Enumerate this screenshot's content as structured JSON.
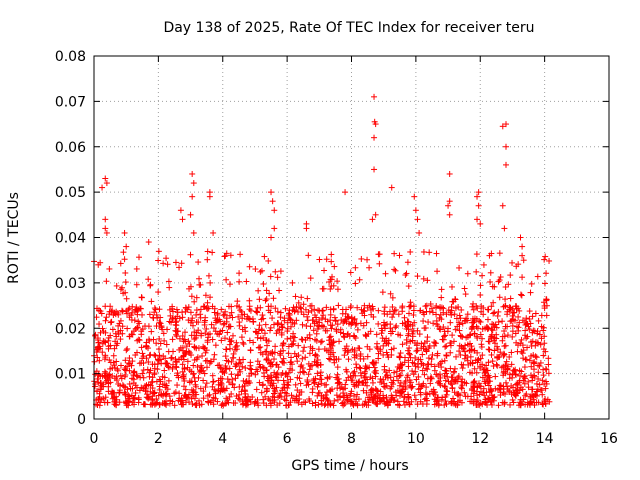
{
  "chart_data": {
    "type": "scatter",
    "title": "Day 138 of 2025, Rate Of TEC Index for receiver teru",
    "xlabel": "GPS time / hours",
    "ylabel": "ROTI / TECUs",
    "xlim": [
      0,
      16
    ],
    "ylim": [
      0,
      0.08
    ],
    "x_ticks": [
      "0",
      "2",
      "4",
      "6",
      "8",
      "10",
      "12",
      "14",
      "16"
    ],
    "y_ticks": [
      "0",
      "0.01",
      "0.02",
      "0.03",
      "0.04",
      "0.05",
      "0.06",
      "0.07",
      "0.08"
    ],
    "grid": true,
    "marker": "plus",
    "series_color": "#ff0000",
    "x_data_range": [
      0,
      14.15
    ],
    "typical_y_range": [
      0.003,
      0.025
    ],
    "notable_points": [
      {
        "x": 0.35,
        "y": 0.053
      },
      {
        "x": 0.4,
        "y": 0.052
      },
      {
        "x": 0.25,
        "y": 0.051
      },
      {
        "x": 0.35,
        "y": 0.044
      },
      {
        "x": 0.35,
        "y": 0.042
      },
      {
        "x": 0.4,
        "y": 0.041
      },
      {
        "x": 0.95,
        "y": 0.041
      },
      {
        "x": 1.0,
        "y": 0.038
      },
      {
        "x": 1.7,
        "y": 0.039
      },
      {
        "x": 2.7,
        "y": 0.046
      },
      {
        "x": 2.75,
        "y": 0.044
      },
      {
        "x": 3.05,
        "y": 0.054
      },
      {
        "x": 3.1,
        "y": 0.052
      },
      {
        "x": 3.05,
        "y": 0.049
      },
      {
        "x": 3.0,
        "y": 0.045
      },
      {
        "x": 3.1,
        "y": 0.041
      },
      {
        "x": 3.6,
        "y": 0.05
      },
      {
        "x": 3.6,
        "y": 0.049
      },
      {
        "x": 3.7,
        "y": 0.041
      },
      {
        "x": 5.5,
        "y": 0.05
      },
      {
        "x": 5.55,
        "y": 0.048
      },
      {
        "x": 5.6,
        "y": 0.046
      },
      {
        "x": 5.6,
        "y": 0.042
      },
      {
        "x": 5.5,
        "y": 0.04
      },
      {
        "x": 6.6,
        "y": 0.043
      },
      {
        "x": 6.6,
        "y": 0.042
      },
      {
        "x": 7.8,
        "y": 0.05
      },
      {
        "x": 8.7,
        "y": 0.071
      },
      {
        "x": 8.75,
        "y": 0.065
      },
      {
        "x": 8.72,
        "y": 0.0655
      },
      {
        "x": 8.7,
        "y": 0.062
      },
      {
        "x": 8.7,
        "y": 0.055
      },
      {
        "x": 8.75,
        "y": 0.045
      },
      {
        "x": 8.65,
        "y": 0.044
      },
      {
        "x": 9.25,
        "y": 0.051
      },
      {
        "x": 9.95,
        "y": 0.049
      },
      {
        "x": 10.0,
        "y": 0.046
      },
      {
        "x": 10.05,
        "y": 0.044
      },
      {
        "x": 10.1,
        "y": 0.041
      },
      {
        "x": 11.05,
        "y": 0.054
      },
      {
        "x": 11.05,
        "y": 0.048
      },
      {
        "x": 11.0,
        "y": 0.047
      },
      {
        "x": 11.05,
        "y": 0.045
      },
      {
        "x": 11.9,
        "y": 0.049
      },
      {
        "x": 11.95,
        "y": 0.05
      },
      {
        "x": 11.95,
        "y": 0.047
      },
      {
        "x": 11.9,
        "y": 0.044
      },
      {
        "x": 12.0,
        "y": 0.043
      },
      {
        "x": 12.7,
        "y": 0.0645
      },
      {
        "x": 12.8,
        "y": 0.065
      },
      {
        "x": 12.8,
        "y": 0.06
      },
      {
        "x": 12.8,
        "y": 0.056
      },
      {
        "x": 12.7,
        "y": 0.047
      },
      {
        "x": 12.75,
        "y": 0.042
      },
      {
        "x": 13.25,
        "y": 0.04
      },
      {
        "x": 13.3,
        "y": 0.038
      },
      {
        "x": 13.3,
        "y": 0.036
      },
      {
        "x": 13.35,
        "y": 0.035
      }
    ]
  }
}
